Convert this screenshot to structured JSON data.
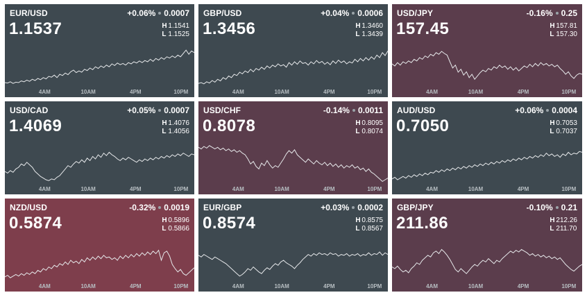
{
  "axis_ticks": [
    "4AM",
    "10AM",
    "4PM",
    "10PM"
  ],
  "colors": {
    "neutral": "#3e4950",
    "down": "#5b3d4c",
    "strong_down": "#7e3e4c",
    "line": "#e6e8ea"
  },
  "tiles": [
    {
      "pair": "EUR/USD",
      "pct": "+0.06%",
      "abs": "0.0007",
      "price": "1.1537",
      "high_label": "H",
      "high": "1.1541",
      "low_label": "L",
      "low": "1.1525",
      "tone": "neutral",
      "series": [
        0.1,
        0.09,
        0.12,
        0.08,
        0.11,
        0.1,
        0.14,
        0.12,
        0.16,
        0.13,
        0.18,
        0.15,
        0.2,
        0.17,
        0.22,
        0.19,
        0.25,
        0.23,
        0.28,
        0.22,
        0.3,
        0.27,
        0.33,
        0.29,
        0.36,
        0.4,
        0.34,
        0.38,
        0.35,
        0.42,
        0.39,
        0.45,
        0.41,
        0.48,
        0.44,
        0.5,
        0.46,
        0.52,
        0.48,
        0.55,
        0.51,
        0.57,
        0.53,
        0.56,
        0.52,
        0.58,
        0.55,
        0.6,
        0.57,
        0.62,
        0.58,
        0.63,
        0.6,
        0.66,
        0.61,
        0.68,
        0.64,
        0.7,
        0.66,
        0.72,
        0.69,
        0.74,
        0.7,
        0.76,
        0.72,
        0.8,
        0.88,
        0.78,
        0.86,
        0.82
      ]
    },
    {
      "pair": "GBP/USD",
      "pct": "+0.04%",
      "abs": "0.0006",
      "price": "1.3456",
      "high_label": "H",
      "high": "1.3460",
      "low_label": "L",
      "low": "1.3439",
      "tone": "neutral",
      "series": [
        0.08,
        0.1,
        0.07,
        0.12,
        0.09,
        0.15,
        0.11,
        0.18,
        0.14,
        0.22,
        0.18,
        0.26,
        0.22,
        0.3,
        0.27,
        0.35,
        0.31,
        0.38,
        0.34,
        0.42,
        0.36,
        0.44,
        0.4,
        0.47,
        0.42,
        0.5,
        0.45,
        0.52,
        0.48,
        0.55,
        0.5,
        0.53,
        0.47,
        0.58,
        0.52,
        0.6,
        0.54,
        0.62,
        0.56,
        0.58,
        0.52,
        0.6,
        0.55,
        0.63,
        0.57,
        0.61,
        0.54,
        0.59,
        0.53,
        0.62,
        0.56,
        0.64,
        0.58,
        0.62,
        0.55,
        0.6,
        0.57,
        0.66,
        0.6,
        0.68,
        0.62,
        0.7,
        0.64,
        0.72,
        0.66,
        0.76,
        0.7,
        0.82,
        0.75,
        0.86
      ]
    },
    {
      "pair": "USD/JPY",
      "pct": "-0.16%",
      "abs": "0.25",
      "price": "157.45",
      "high_label": "H",
      "high": "157.81",
      "low_label": "L",
      "low": "157.30",
      "tone": "down",
      "series": [
        0.55,
        0.5,
        0.58,
        0.52,
        0.6,
        0.56,
        0.62,
        0.58,
        0.66,
        0.62,
        0.7,
        0.66,
        0.74,
        0.7,
        0.78,
        0.74,
        0.82,
        0.78,
        0.85,
        0.8,
        0.76,
        0.6,
        0.45,
        0.52,
        0.35,
        0.42,
        0.28,
        0.36,
        0.22,
        0.3,
        0.18,
        0.26,
        0.34,
        0.4,
        0.36,
        0.44,
        0.4,
        0.48,
        0.44,
        0.52,
        0.46,
        0.5,
        0.42,
        0.48,
        0.4,
        0.46,
        0.38,
        0.44,
        0.5,
        0.46,
        0.54,
        0.48,
        0.56,
        0.5,
        0.58,
        0.52,
        0.56,
        0.5,
        0.54,
        0.48,
        0.52,
        0.44,
        0.38,
        0.3,
        0.36,
        0.26,
        0.2,
        0.28,
        0.32,
        0.3
      ]
    },
    {
      "pair": "USD/CAD",
      "pct": "+0.05%",
      "abs": "0.0007",
      "price": "1.4069",
      "high_label": "H",
      "high": "1.4076",
      "low_label": "L",
      "low": "1.4056",
      "tone": "neutral",
      "series": [
        0.3,
        0.26,
        0.32,
        0.28,
        0.36,
        0.4,
        0.48,
        0.44,
        0.52,
        0.46,
        0.4,
        0.3,
        0.24,
        0.18,
        0.14,
        0.1,
        0.08,
        0.12,
        0.1,
        0.16,
        0.2,
        0.28,
        0.36,
        0.44,
        0.4,
        0.48,
        0.54,
        0.5,
        0.58,
        0.52,
        0.62,
        0.56,
        0.66,
        0.6,
        0.7,
        0.64,
        0.74,
        0.68,
        0.76,
        0.7,
        0.66,
        0.6,
        0.56,
        0.62,
        0.58,
        0.64,
        0.6,
        0.56,
        0.52,
        0.58,
        0.54,
        0.6,
        0.56,
        0.62,
        0.58,
        0.64,
        0.6,
        0.66,
        0.62,
        0.68,
        0.64,
        0.7,
        0.66,
        0.72,
        0.68,
        0.74,
        0.7,
        0.66,
        0.72,
        0.7
      ]
    },
    {
      "pair": "USD/CHF",
      "pct": "-0.14%",
      "abs": "0.0011",
      "price": "0.8078",
      "high_label": "H",
      "high": "0.8095",
      "low_label": "L",
      "low": "0.8074",
      "tone": "down",
      "series": [
        0.88,
        0.84,
        0.9,
        0.86,
        0.92,
        0.88,
        0.84,
        0.88,
        0.82,
        0.86,
        0.8,
        0.84,
        0.78,
        0.82,
        0.76,
        0.8,
        0.74,
        0.7,
        0.6,
        0.48,
        0.54,
        0.42,
        0.36,
        0.5,
        0.44,
        0.56,
        0.46,
        0.38,
        0.44,
        0.4,
        0.5,
        0.6,
        0.72,
        0.8,
        0.74,
        0.82,
        0.7,
        0.64,
        0.58,
        0.52,
        0.6,
        0.54,
        0.48,
        0.56,
        0.5,
        0.46,
        0.52,
        0.44,
        0.5,
        0.42,
        0.48,
        0.4,
        0.46,
        0.38,
        0.44,
        0.4,
        0.46,
        0.38,
        0.42,
        0.34,
        0.38,
        0.3,
        0.36,
        0.28,
        0.24,
        0.18,
        0.12,
        0.06,
        0.1,
        0.14
      ]
    },
    {
      "pair": "AUD/USD",
      "pct": "+0.06%",
      "abs": "0.0004",
      "price": "0.7050",
      "high_label": "H",
      "high": "0.7053",
      "low_label": "L",
      "low": "0.7037",
      "tone": "neutral",
      "series": [
        0.12,
        0.16,
        0.1,
        0.14,
        0.18,
        0.14,
        0.2,
        0.16,
        0.22,
        0.18,
        0.24,
        0.2,
        0.26,
        0.22,
        0.28,
        0.26,
        0.32,
        0.28,
        0.34,
        0.3,
        0.36,
        0.32,
        0.38,
        0.34,
        0.4,
        0.36,
        0.42,
        0.38,
        0.44,
        0.4,
        0.46,
        0.42,
        0.48,
        0.44,
        0.5,
        0.46,
        0.52,
        0.48,
        0.54,
        0.5,
        0.56,
        0.52,
        0.58,
        0.54,
        0.6,
        0.56,
        0.62,
        0.58,
        0.64,
        0.6,
        0.66,
        0.62,
        0.68,
        0.64,
        0.7,
        0.66,
        0.74,
        0.68,
        0.72,
        0.66,
        0.7,
        0.64,
        0.72,
        0.68,
        0.76,
        0.7,
        0.74,
        0.72,
        0.78,
        0.76
      ]
    },
    {
      "pair": "NZD/USD",
      "pct": "-0.32%",
      "abs": "0.0019",
      "price": "0.5874",
      "high_label": "H",
      "high": "0.5896",
      "low_label": "L",
      "low": "0.5866",
      "tone": "strong",
      "series": [
        0.1,
        0.14,
        0.08,
        0.12,
        0.16,
        0.12,
        0.18,
        0.14,
        0.2,
        0.16,
        0.22,
        0.18,
        0.26,
        0.22,
        0.3,
        0.26,
        0.34,
        0.3,
        0.38,
        0.34,
        0.42,
        0.38,
        0.46,
        0.4,
        0.5,
        0.44,
        0.48,
        0.42,
        0.52,
        0.46,
        0.56,
        0.5,
        0.58,
        0.52,
        0.6,
        0.54,
        0.62,
        0.56,
        0.58,
        0.52,
        0.56,
        0.5,
        0.6,
        0.54,
        0.62,
        0.56,
        0.64,
        0.58,
        0.66,
        0.6,
        0.68,
        0.62,
        0.7,
        0.64,
        0.72,
        0.66,
        0.74,
        0.5,
        0.68,
        0.72,
        0.6,
        0.4,
        0.3,
        0.22,
        0.28,
        0.18,
        0.14,
        0.2,
        0.26,
        0.32
      ]
    },
    {
      "pair": "EUR/GBP",
      "pct": "+0.03%",
      "abs": "0.0002",
      "price": "0.8574",
      "high_label": "H",
      "high": "0.8575",
      "low_label": "L",
      "low": "0.8567",
      "tone": "neutral",
      "series": [
        0.62,
        0.58,
        0.64,
        0.6,
        0.56,
        0.52,
        0.58,
        0.54,
        0.5,
        0.46,
        0.42,
        0.36,
        0.3,
        0.24,
        0.18,
        0.12,
        0.16,
        0.22,
        0.3,
        0.26,
        0.34,
        0.28,
        0.22,
        0.18,
        0.26,
        0.32,
        0.28,
        0.36,
        0.42,
        0.38,
        0.46,
        0.5,
        0.44,
        0.4,
        0.36,
        0.3,
        0.38,
        0.44,
        0.52,
        0.58,
        0.64,
        0.6,
        0.66,
        0.62,
        0.68,
        0.64,
        0.66,
        0.62,
        0.68,
        0.64,
        0.66,
        0.6,
        0.64,
        0.62,
        0.66,
        0.6,
        0.64,
        0.62,
        0.66,
        0.6,
        0.64,
        0.62,
        0.68,
        0.62,
        0.66,
        0.64,
        0.7,
        0.62,
        0.68,
        0.64
      ]
    },
    {
      "pair": "GBP/JPY",
      "pct": "-0.10%",
      "abs": "0.21",
      "price": "211.86",
      "high_label": "H",
      "high": "212.26",
      "low_label": "L",
      "low": "211.70",
      "tone": "down",
      "series": [
        0.34,
        0.3,
        0.36,
        0.28,
        0.22,
        0.26,
        0.2,
        0.3,
        0.36,
        0.44,
        0.4,
        0.5,
        0.56,
        0.62,
        0.58,
        0.68,
        0.72,
        0.66,
        0.76,
        0.7,
        0.62,
        0.52,
        0.4,
        0.28,
        0.22,
        0.3,
        0.24,
        0.18,
        0.26,
        0.34,
        0.4,
        0.36,
        0.44,
        0.5,
        0.46,
        0.54,
        0.48,
        0.42,
        0.5,
        0.46,
        0.54,
        0.6,
        0.66,
        0.72,
        0.68,
        0.74,
        0.7,
        0.76,
        0.72,
        0.68,
        0.62,
        0.66,
        0.6,
        0.64,
        0.58,
        0.62,
        0.56,
        0.6,
        0.54,
        0.58,
        0.52,
        0.56,
        0.48,
        0.4,
        0.34,
        0.28,
        0.24,
        0.3,
        0.36,
        0.4
      ]
    }
  ]
}
